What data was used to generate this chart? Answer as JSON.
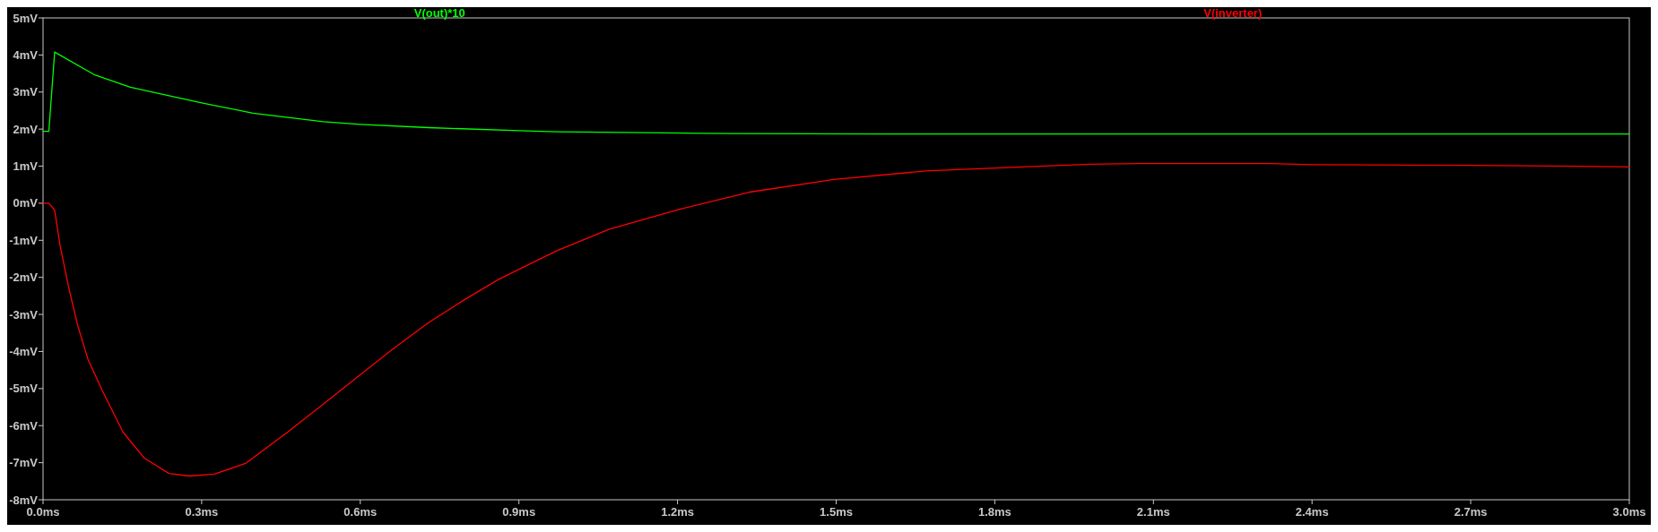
{
  "chart_data": {
    "type": "line",
    "legend": "top",
    "grid": false,
    "line_style": "solid",
    "marker": "none",
    "xlim": [
      0,
      3
    ],
    "ylim": [
      -8,
      5
    ],
    "xticks": [
      {
        "value": 0,
        "label": "0.0ms"
      },
      {
        "value": 0.3,
        "label": "0.3ms"
      },
      {
        "value": 0.6,
        "label": "0.6ms"
      },
      {
        "value": 0.9,
        "label": "0.9ms"
      },
      {
        "value": 1.2,
        "label": "1.2ms"
      },
      {
        "value": 1.5,
        "label": "1.5ms"
      },
      {
        "value": 1.8,
        "label": "1.8ms"
      },
      {
        "value": 2.1,
        "label": "2.1ms"
      },
      {
        "value": 2.4,
        "label": "2.4ms"
      },
      {
        "value": 2.7,
        "label": "2.7ms"
      },
      {
        "value": 3,
        "label": "3.0ms"
      }
    ],
    "yticks": [
      {
        "value": 5,
        "label": "5mV"
      },
      {
        "value": 4,
        "label": "4mV"
      },
      {
        "value": 3,
        "label": "3mV"
      },
      {
        "value": 2,
        "label": "2mV"
      },
      {
        "value": 1,
        "label": "1mV"
      },
      {
        "value": 0,
        "label": "0mV"
      },
      {
        "value": -1,
        "label": "-1mV"
      },
      {
        "value": -2,
        "label": "-2mV"
      },
      {
        "value": -3,
        "label": "-3mV"
      },
      {
        "value": -4,
        "label": "-4mV"
      },
      {
        "value": -5,
        "label": "-5mV"
      },
      {
        "value": -6,
        "label": "-6mV"
      },
      {
        "value": -7,
        "label": "-7mV"
      },
      {
        "value": -8,
        "label": "-8mV"
      }
    ],
    "series": [
      {
        "name": "V(out)*10",
        "color": "#00ff00",
        "x": [
          0,
          0.011,
          0.022,
          0.098,
          0.165,
          0.3,
          0.397,
          0.53,
          0.6,
          0.729,
          0.9,
          0.97,
          1.1,
          1.3,
          1.6,
          2.0,
          2.5,
          3.0
        ],
        "values": [
          1.94,
          1.94,
          4.08,
          3.46,
          3.13,
          2.71,
          2.43,
          2.2,
          2.13,
          2.04,
          1.96,
          1.93,
          1.91,
          1.88,
          1.87,
          1.87,
          1.87,
          1.87
        ]
      },
      {
        "name": "V(inverter)",
        "color": "#ff0000",
        "x": [
          0,
          0.011,
          0.022,
          0.032,
          0.048,
          0.065,
          0.085,
          0.112,
          0.151,
          0.191,
          0.238,
          0.277,
          0.324,
          0.384,
          0.463,
          0.53,
          0.596,
          0.662,
          0.729,
          0.795,
          0.861,
          0.939,
          0.972,
          1.071,
          1.204,
          1.336,
          1.496,
          1.669,
          1.801,
          1.979,
          2.07,
          2.32,
          2.4,
          2.7,
          2.9,
          3.0
        ],
        "values": [
          0,
          0,
          -0.19,
          -1.12,
          -2.24,
          -3.27,
          -4.21,
          -5.05,
          -6.17,
          -6.87,
          -7.29,
          -7.36,
          -7.31,
          -7.01,
          -6.17,
          -5.42,
          -4.67,
          -3.93,
          -3.22,
          -2.62,
          -2.06,
          -1.51,
          -1.28,
          -0.7,
          -0.16,
          0.3,
          0.64,
          0.87,
          0.95,
          1.05,
          1.07,
          1.07,
          1.04,
          1.02,
          1.0,
          0.98
        ]
      }
    ]
  }
}
